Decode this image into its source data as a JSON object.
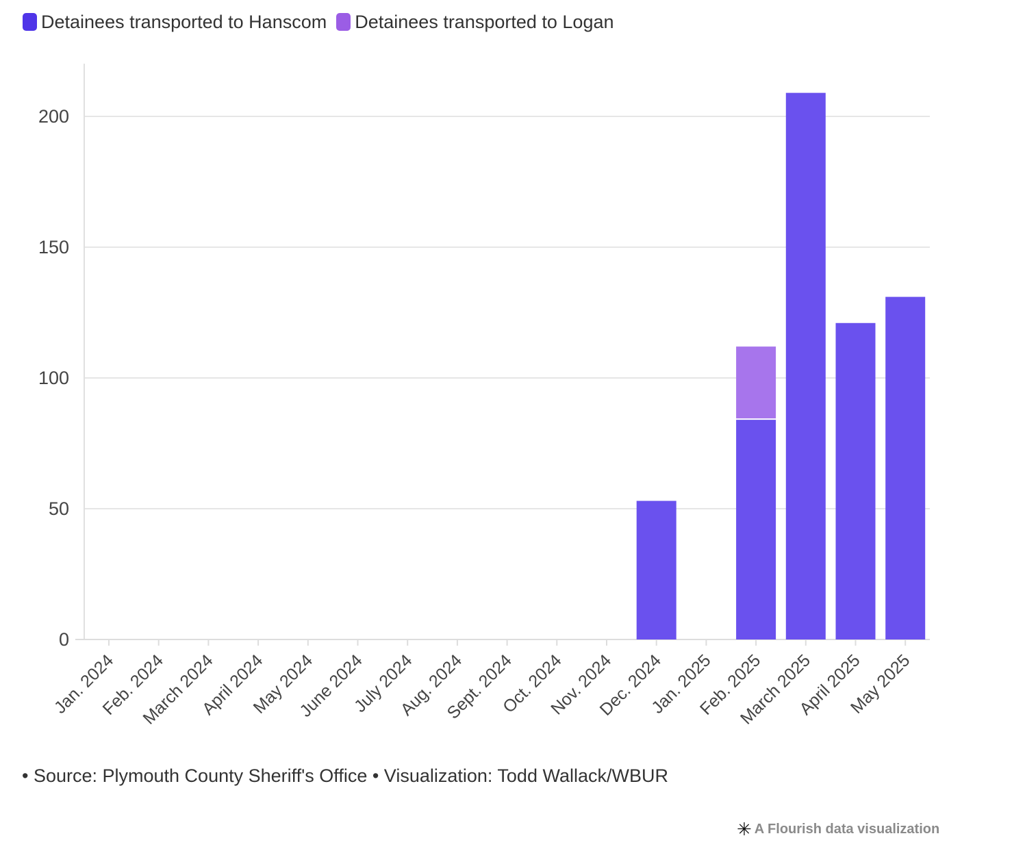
{
  "chart_data": {
    "type": "bar",
    "stacked": true,
    "categories": [
      "Jan. 2024",
      "Feb. 2024",
      "March 2024",
      "April 2024",
      "May 2024",
      "June 2024",
      "July 2024",
      "Aug. 2024",
      "Sept. 2024",
      "Oct. 2024",
      "Nov. 2024",
      "Dec. 2024",
      "Jan. 2025",
      "Feb. 2025",
      "March 2025",
      "April 2025",
      "May 2025"
    ],
    "series": [
      {
        "name": "Detainees transported to Hanscom",
        "color": "#4f35e8",
        "values": [
          0,
          0,
          0,
          0,
          0,
          0,
          0,
          0,
          0,
          0,
          0,
          53,
          0,
          84,
          209,
          121,
          131
        ]
      },
      {
        "name": "Detainees transported to Logan",
        "color": "#9b5de5",
        "values": [
          0,
          0,
          0,
          0,
          0,
          0,
          0,
          0,
          0,
          0,
          0,
          0,
          0,
          28,
          0,
          0,
          0
        ]
      }
    ],
    "bar_colors": [
      "#6a51ee",
      "#a775ec"
    ],
    "y_ticks": [
      "0",
      "50",
      "100",
      "150",
      "200"
    ],
    "ylim": [
      0,
      220
    ],
    "title": "",
    "xlabel": "",
    "ylabel": "",
    "grid": true,
    "legend": "top-left"
  },
  "footer": {
    "source_text": "• Source: Plymouth County Sheriff's Office • Visualization: Todd Wallack/WBUR"
  },
  "brand": {
    "icon": "flourish-asterisk-icon",
    "text": "A Flourish data visualization"
  }
}
